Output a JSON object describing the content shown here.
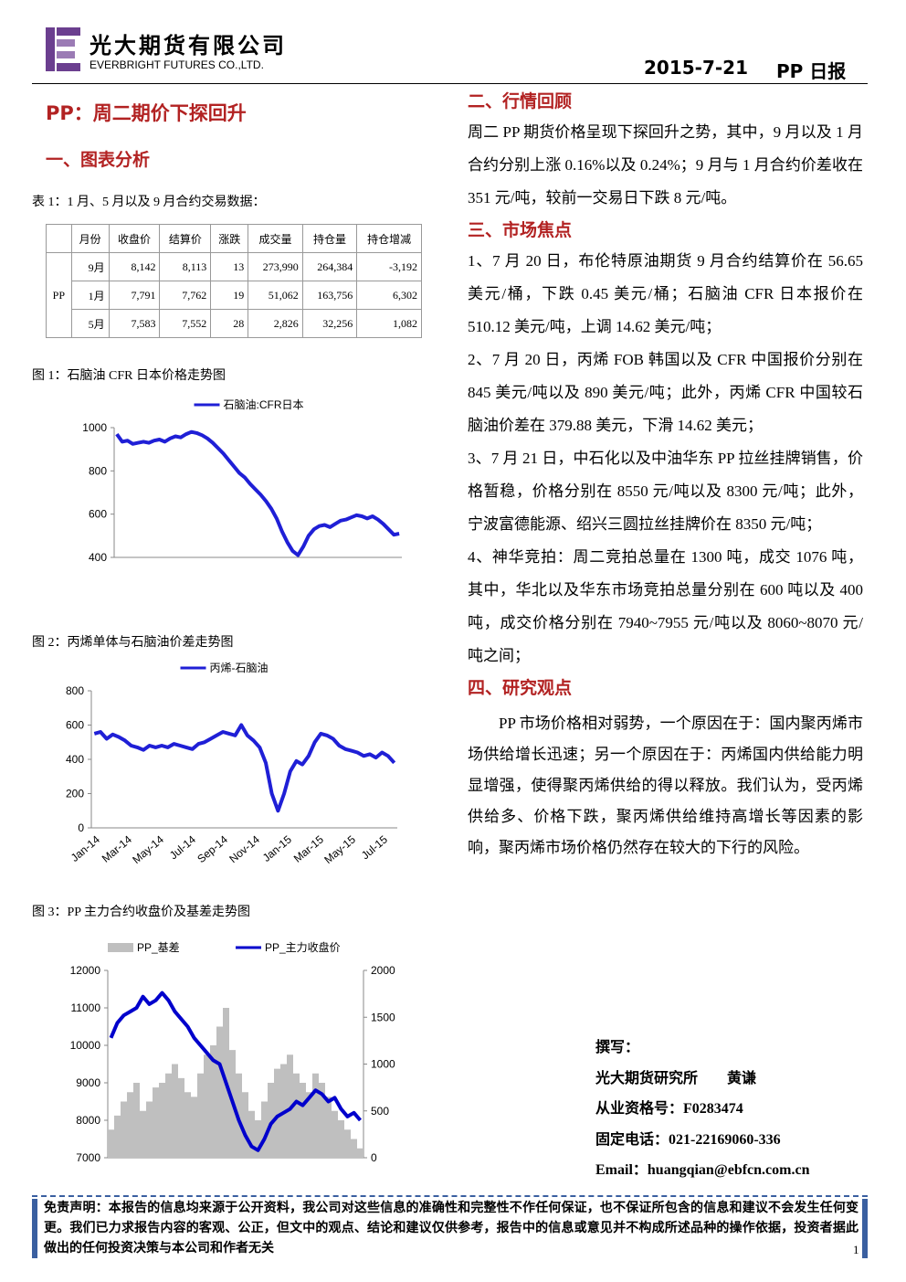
{
  "header": {
    "company_cn": "光大期货有限公司",
    "company_en": "EVERBRIGHT FUTURES CO.,LTD.",
    "date": "2015-7-21",
    "report": "PP 日报"
  },
  "title": "PP：周二期价下探回升",
  "section1": "一、图表分析",
  "table": {
    "caption": "表 1：1 月、5 月以及 9 月合约交易数据：",
    "header": [
      "",
      "月份",
      "收盘价",
      "结算价",
      "涨跌",
      "成交量",
      "持仓量",
      "持仓增减"
    ],
    "product": "PP",
    "rows": [
      [
        "9月",
        "8,142",
        "8,113",
        "13",
        "273,990",
        "264,384",
        "-3,192"
      ],
      [
        "1月",
        "7,791",
        "7,762",
        "19",
        "51,062",
        "163,756",
        "6,302"
      ],
      [
        "5月",
        "7,583",
        "7,552",
        "28",
        "2,826",
        "32,256",
        "1,082"
      ]
    ]
  },
  "figure_captions": [
    "图 1：石脑油 CFR 日本价格走势图",
    "图 2：丙烯单体与石脑油价差走势图",
    "图 3：PP 主力合约收盘价及基差走势图"
  ],
  "chart_data": [
    {
      "type": "line",
      "ylim": [
        400,
        1000
      ],
      "yticks": [
        400,
        600,
        800,
        1000
      ],
      "series": [
        {
          "name": "石脑油:CFR日本",
          "color": "#1f1fd6",
          "values": [
            970,
            935,
            940,
            925,
            930,
            935,
            930,
            940,
            945,
            935,
            950,
            960,
            955,
            970,
            980,
            975,
            965,
            950,
            930,
            905,
            880,
            850,
            820,
            790,
            770,
            740,
            715,
            690,
            660,
            625,
            580,
            520,
            470,
            430,
            410,
            450,
            500,
            530,
            545,
            550,
            540,
            555,
            570,
            575,
            585,
            595,
            590,
            580,
            590,
            575,
            555,
            530,
            505,
            510
          ]
        }
      ]
    },
    {
      "type": "line",
      "ylim": [
        0,
        800
      ],
      "yticks": [
        0,
        200,
        400,
        600,
        800
      ],
      "x_tick_labels": [
        "Jan-14",
        "Mar-14",
        "May-14",
        "Jul-14",
        "Sep-14",
        "Nov-14",
        "Jan-15",
        "Mar-15",
        "May-15",
        "Jul-15"
      ],
      "series": [
        {
          "name": "丙烯-石脑油",
          "color": "#1f1fd6",
          "values": [
            550,
            560,
            520,
            545,
            530,
            510,
            480,
            470,
            455,
            480,
            470,
            480,
            470,
            490,
            480,
            470,
            460,
            490,
            500,
            520,
            540,
            560,
            550,
            540,
            600,
            540,
            510,
            470,
            380,
            200,
            100,
            200,
            330,
            390,
            370,
            420,
            500,
            550,
            540,
            520,
            480,
            460,
            450,
            440,
            420,
            430,
            410,
            440,
            420,
            380
          ]
        }
      ]
    },
    {
      "type": "line",
      "ylim": [
        7000,
        12000
      ],
      "yticks": [
        7000,
        8000,
        9000,
        10000,
        11000,
        12000
      ],
      "y2lim": [
        0,
        2000
      ],
      "y2ticks": [
        0,
        500,
        1000,
        1500,
        2000
      ],
      "series": [
        {
          "name": "PP_基差",
          "color": "#bfbfbf",
          "type": "bar",
          "axis": "y2",
          "values": [
            300,
            450,
            600,
            700,
            800,
            500,
            600,
            750,
            800,
            900,
            1000,
            850,
            700,
            650,
            900,
            1100,
            1200,
            1400,
            1600,
            1150,
            900,
            700,
            500,
            400,
            600,
            800,
            950,
            1000,
            1100,
            900,
            800,
            700,
            900,
            800,
            650,
            500,
            400,
            300,
            200,
            100
          ]
        },
        {
          "name": "PP_主力收盘价",
          "color": "#0000cc",
          "type": "line",
          "values": [
            10200,
            10600,
            10800,
            10900,
            11000,
            11300,
            11100,
            11200,
            11400,
            11200,
            10900,
            10700,
            10500,
            10200,
            10000,
            9800,
            9600,
            9500,
            9000,
            8500,
            8000,
            7600,
            7300,
            7200,
            7500,
            7900,
            8100,
            8200,
            8300,
            8500,
            8400,
            8600,
            8800,
            8700,
            8500,
            8600,
            8300,
            8100,
            8200,
            8000
          ]
        }
      ]
    }
  ],
  "right": {
    "s2": "二、行情回顾",
    "p2": "周二 PP 期货价格呈现下探回升之势，其中，9 月以及 1 月合约分别上涨 0.16%以及 0.24%；9 月与 1 月合约价差收在 351 元/吨，较前一交易日下跌 8 元/吨。",
    "s3": "三、市场焦点",
    "items": [
      "1、7 月 20 日，布伦特原油期货 9 月合约结算价在 56.65 美元/桶，下跌 0.45 美元/桶；石脑油 CFR 日本报价在 510.12 美元/吨，上调 14.62 美元/吨；",
      "2、7 月 20 日，丙烯 FOB 韩国以及 CFR 中国报价分别在 845 美元/吨以及 890 美元/吨；此外，丙烯 CFR 中国较石脑油价差在 379.88 美元，下滑 14.62 美元；",
      "3、7 月 21 日，中石化以及中油华东 PP 拉丝挂牌销售，价格暂稳，价格分别在 8550 元/吨以及 8300 元/吨；此外，宁波富德能源、绍兴三圆拉丝挂牌价在 8350 元/吨；",
      "4、神华竞拍：周二竞拍总量在 1300 吨，成交 1076 吨，其中，华北以及华东市场竞拍总量分别在 600 吨以及 400 吨，成交价格分别在 7940~7955 元/吨以及 8060~8070 元/吨之间；"
    ],
    "s4": "四、研究观点",
    "p4": "PP 市场价格相对弱势，一个原因在于：国内聚丙烯市场供给增长迅速；另一个原因在于：丙烯国内供给能力明显增强，使得聚丙烯供给的得以释放。我们认为，受丙烯供给多、价格下跌，聚丙烯供给维持高增长等因素的影响，聚丙烯市场价格仍然存在较大的下行的风险。"
  },
  "author": [
    "撰写：",
    "光大期货研究所　　黄谦",
    "从业资格号：F0283474",
    "固定电话：021-22169060-336",
    "Email：huangqian@ebfcn.com.cn"
  ],
  "disclaimer": "免责声明：本报告的信息均来源于公开资料，我公司对这些信息的准确性和完整性不作任何保证，也不保证所包含的信息和建议不会发生任何变更。我们已力求报告内容的客观、公正，但文中的观点、结论和建议仅供参考，报告中的信息或意见并不构成所述品种的操作依据，投资者据此做出的任何投资决策与本公司和作者无关",
  "page_number": "1"
}
